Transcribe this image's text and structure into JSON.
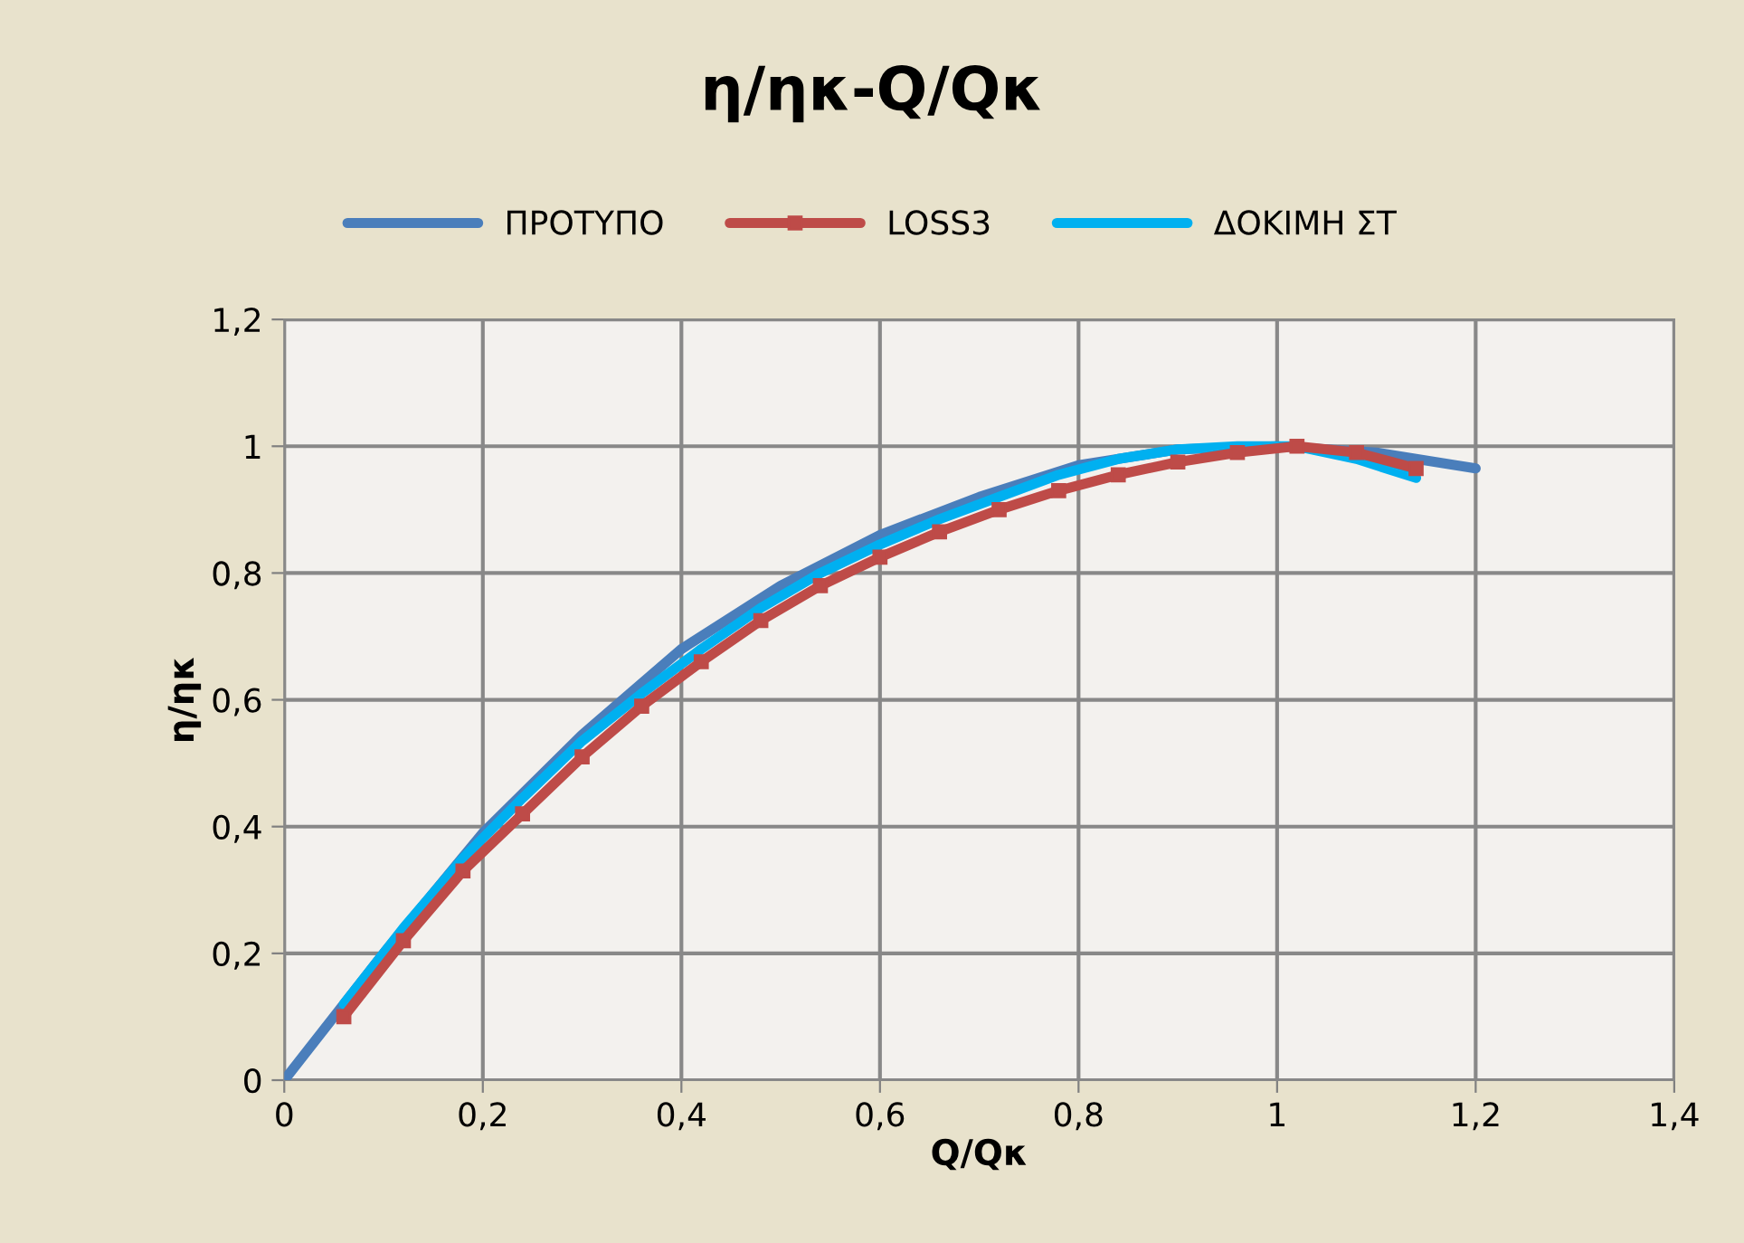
{
  "chart_data": {
    "type": "line",
    "title": "η/ηκ-Q/Qκ",
    "xlabel": "Q/Qκ",
    "ylabel": "η/ηκ",
    "xlim": [
      0,
      1.4
    ],
    "ylim": [
      0,
      1.2
    ],
    "xticks": [
      0,
      {
        "value": 0.2,
        "label": "0,2"
      },
      {
        "value": 0.4,
        "label": "0,4"
      },
      {
        "value": 0.6,
        "label": "0,6"
      },
      {
        "value": 0.8,
        "label": "0,8"
      },
      1,
      {
        "value": 1.2,
        "label": "1,2"
      },
      {
        "value": 1.4,
        "label": "1,4"
      }
    ],
    "yticks": [
      0,
      {
        "value": 0.2,
        "label": "0,2"
      },
      {
        "value": 0.4,
        "label": "0,4"
      },
      {
        "value": 0.6,
        "label": "0,6"
      },
      {
        "value": 0.8,
        "label": "0,8"
      },
      1,
      {
        "value": 1.2,
        "label": "1,2"
      }
    ],
    "grid": true,
    "legend": "top",
    "series": [
      {
        "name": "ΠΡΟΤΥΠΟ",
        "color": "#4a7ebb",
        "marker": "none",
        "x": [
          0,
          0.1,
          0.2,
          0.3,
          0.4,
          0.5,
          0.6,
          0.7,
          0.8,
          0.9,
          1.0,
          1.1,
          1.2
        ],
        "values": [
          0,
          0.2,
          0.39,
          0.545,
          0.68,
          0.78,
          0.86,
          0.92,
          0.97,
          0.995,
          1.0,
          0.99,
          0.965
        ]
      },
      {
        "name": "LOSS3",
        "color": "#be4b48",
        "marker": "square",
        "x": [
          0.06,
          0.12,
          0.18,
          0.24,
          0.3,
          0.36,
          0.42,
          0.48,
          0.54,
          0.6,
          0.66,
          0.72,
          0.78,
          0.84,
          0.9,
          0.96,
          1.02,
          1.08,
          1.14
        ],
        "values": [
          0.1,
          0.22,
          0.33,
          0.42,
          0.51,
          0.59,
          0.66,
          0.725,
          0.78,
          0.825,
          0.865,
          0.9,
          0.93,
          0.955,
          0.975,
          0.99,
          1.0,
          0.99,
          0.965
        ]
      },
      {
        "name": "ΔΟΚΙΜΗ ΣΤ",
        "color": "#00b0f0",
        "marker": "none",
        "x": [
          0.06,
          0.12,
          0.18,
          0.24,
          0.3,
          0.36,
          0.42,
          0.48,
          0.54,
          0.6,
          0.66,
          0.72,
          0.78,
          0.84,
          0.9,
          0.96,
          1.02,
          1.08,
          1.14
        ],
        "values": [
          0.12,
          0.24,
          0.35,
          0.445,
          0.535,
          0.61,
          0.68,
          0.745,
          0.8,
          0.845,
          0.885,
          0.92,
          0.955,
          0.98,
          0.995,
          1.0,
          1.0,
          0.98,
          0.95
        ]
      }
    ]
  }
}
